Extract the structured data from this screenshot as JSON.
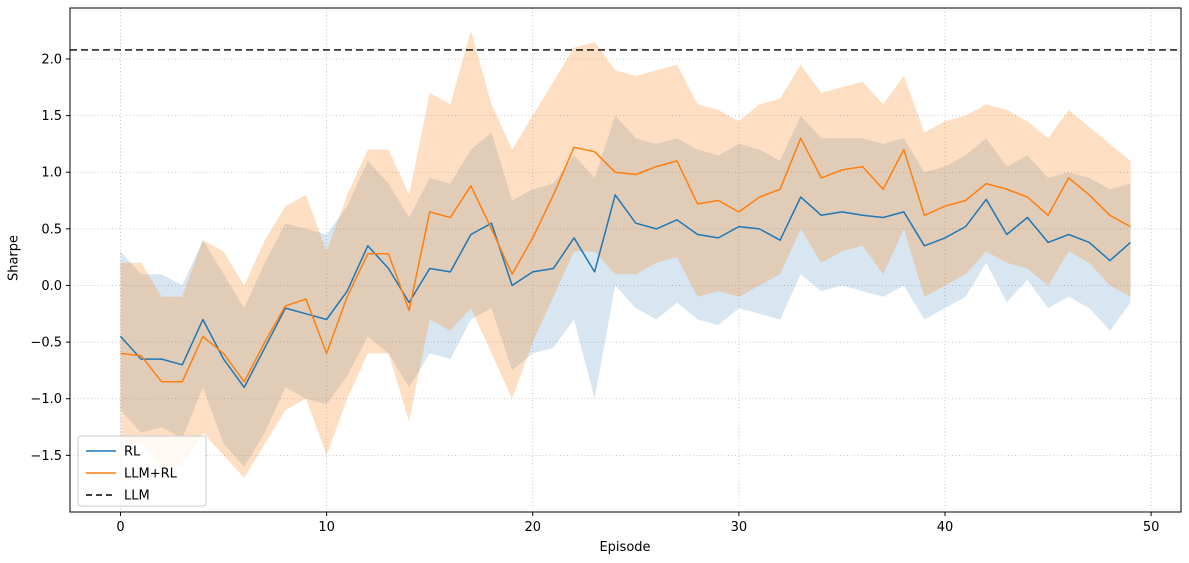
{
  "figure": {
    "background": "#ffffff"
  },
  "chart_data": {
    "type": "line",
    "title": "",
    "xlabel": "Episode",
    "ylabel": "Sharpe",
    "xlim": [
      -2.45,
      51.45
    ],
    "ylim": [
      -2.0,
      2.45
    ],
    "xticks": [
      0,
      10,
      20,
      30,
      40,
      50
    ],
    "yticks": [
      -1.5,
      -1.0,
      -0.5,
      0.0,
      0.5,
      1.0,
      1.5,
      2.0
    ],
    "grid": true,
    "grid_color": "#b8b8b8",
    "legend": {
      "position": "lower left"
    },
    "x": [
      0,
      1,
      2,
      3,
      4,
      5,
      6,
      7,
      8,
      9,
      10,
      11,
      12,
      13,
      14,
      15,
      16,
      17,
      18,
      19,
      20,
      21,
      22,
      23,
      24,
      25,
      26,
      27,
      28,
      29,
      30,
      31,
      32,
      33,
      34,
      35,
      36,
      37,
      38,
      39,
      40,
      41,
      42,
      43,
      44,
      45,
      46,
      47,
      48,
      49
    ],
    "series": [
      {
        "name": "RL",
        "color": "#1f77b4",
        "band_alpha": 0.18,
        "values": [
          -0.45,
          -0.65,
          -0.65,
          -0.7,
          -0.3,
          -0.65,
          -0.9,
          -0.55,
          -0.2,
          -0.25,
          -0.3,
          -0.05,
          0.35,
          0.15,
          -0.15,
          0.15,
          0.12,
          0.45,
          0.55,
          0.0,
          0.12,
          0.15,
          0.42,
          0.12,
          0.8,
          0.55,
          0.5,
          0.58,
          0.45,
          0.42,
          0.52,
          0.5,
          0.4,
          0.78,
          0.62,
          0.65,
          0.62,
          0.6,
          0.65,
          0.35,
          0.42,
          0.52,
          0.76,
          0.45,
          0.6,
          0.38,
          0.45,
          0.38,
          0.22,
          0.38
        ],
        "band_lower": [
          -1.1,
          -1.3,
          -1.25,
          -1.35,
          -0.9,
          -1.4,
          -1.6,
          -1.3,
          -0.9,
          -1.0,
          -1.05,
          -0.8,
          -0.45,
          -0.6,
          -0.9,
          -0.6,
          -0.65,
          -0.3,
          -0.2,
          -0.75,
          -0.6,
          -0.55,
          -0.3,
          -1.0,
          0.0,
          -0.2,
          -0.3,
          -0.15,
          -0.3,
          -0.35,
          -0.2,
          -0.25,
          -0.3,
          0.1,
          -0.05,
          0.0,
          -0.05,
          -0.1,
          0.0,
          -0.3,
          -0.2,
          -0.1,
          0.2,
          -0.15,
          0.05,
          -0.2,
          -0.1,
          -0.2,
          -0.4,
          -0.15
        ],
        "band_upper": [
          0.3,
          0.1,
          0.1,
          0.0,
          0.4,
          0.1,
          -0.2,
          0.2,
          0.55,
          0.5,
          0.45,
          0.7,
          1.1,
          0.9,
          0.6,
          0.95,
          0.9,
          1.2,
          1.35,
          0.75,
          0.85,
          0.9,
          1.15,
          0.95,
          1.5,
          1.3,
          1.25,
          1.3,
          1.2,
          1.15,
          1.25,
          1.2,
          1.1,
          1.5,
          1.3,
          1.3,
          1.3,
          1.25,
          1.3,
          1.0,
          1.05,
          1.15,
          1.3,
          1.05,
          1.15,
          0.95,
          1.0,
          0.95,
          0.85,
          0.9
        ]
      },
      {
        "name": "LLM+RL",
        "color": "#ff7f0e",
        "band_alpha": 0.25,
        "values": [
          -0.6,
          -0.62,
          -0.85,
          -0.85,
          -0.45,
          -0.6,
          -0.85,
          -0.5,
          -0.18,
          -0.12,
          -0.6,
          -0.1,
          0.28,
          0.28,
          -0.22,
          0.65,
          0.6,
          0.88,
          0.5,
          0.1,
          0.42,
          0.8,
          1.22,
          1.18,
          1.0,
          0.98,
          1.05,
          1.1,
          0.72,
          0.75,
          0.65,
          0.78,
          0.85,
          1.3,
          0.95,
          1.02,
          1.05,
          0.85,
          1.2,
          0.62,
          0.7,
          0.75,
          0.9,
          0.85,
          0.78,
          0.62,
          0.95,
          0.8,
          0.62,
          0.52
        ],
        "band_lower": [
          -1.4,
          -1.4,
          -1.6,
          -1.6,
          -1.3,
          -1.5,
          -1.7,
          -1.4,
          -1.1,
          -1.0,
          -1.5,
          -1.0,
          -0.6,
          -0.6,
          -1.2,
          -0.3,
          -0.4,
          -0.2,
          -0.6,
          -1.0,
          -0.5,
          -0.1,
          0.3,
          0.3,
          0.1,
          0.1,
          0.2,
          0.25,
          -0.1,
          -0.05,
          -0.1,
          0.0,
          0.1,
          0.5,
          0.2,
          0.3,
          0.35,
          0.1,
          0.5,
          -0.1,
          0.0,
          0.1,
          0.3,
          0.2,
          0.15,
          0.0,
          0.3,
          0.2,
          0.0,
          -0.1
        ],
        "band_upper": [
          0.2,
          0.2,
          -0.1,
          -0.1,
          0.4,
          0.3,
          0.0,
          0.4,
          0.7,
          0.8,
          0.3,
          0.8,
          1.2,
          1.2,
          0.8,
          1.7,
          1.6,
          2.25,
          1.6,
          1.2,
          1.5,
          1.8,
          2.1,
          2.15,
          1.9,
          1.85,
          1.9,
          1.95,
          1.6,
          1.55,
          1.45,
          1.6,
          1.65,
          1.95,
          1.7,
          1.75,
          1.8,
          1.6,
          1.85,
          1.35,
          1.45,
          1.5,
          1.6,
          1.55,
          1.45,
          1.3,
          1.55,
          1.4,
          1.25,
          1.1
        ]
      }
    ],
    "hline": {
      "name": "LLM",
      "value": 2.08,
      "color": "#000000",
      "style": "dashed"
    }
  }
}
